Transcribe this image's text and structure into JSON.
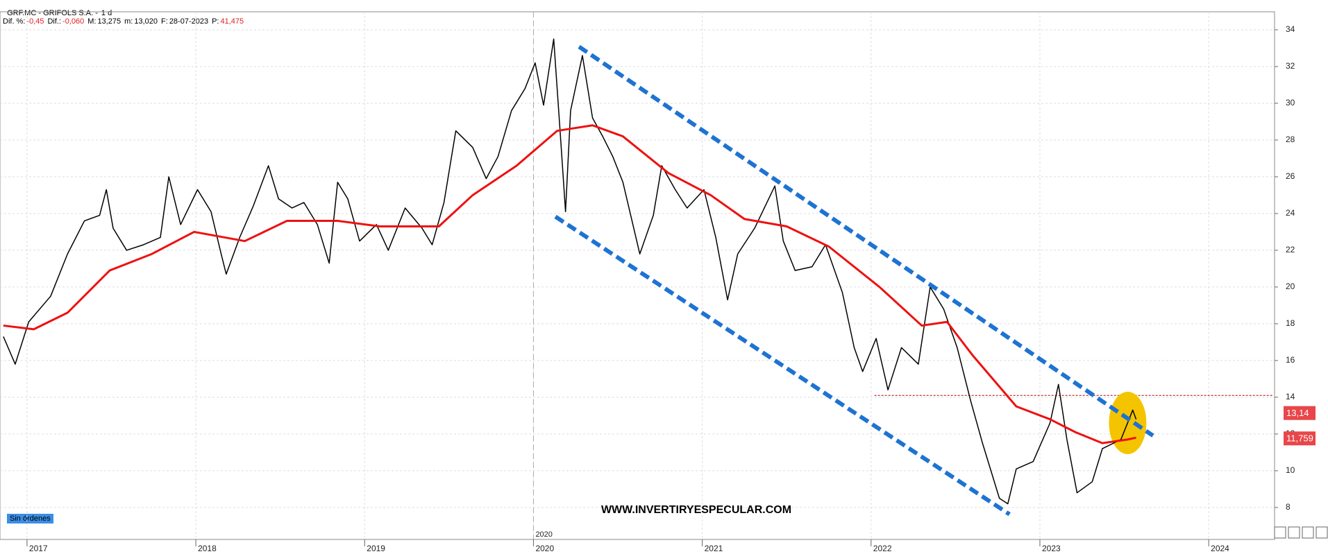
{
  "header": {
    "name": "GRF.MC - GRIFOLS S.A. -",
    "period": "1 d",
    "fields": [
      {
        "label": "Dif. %:",
        "value": "-0,45",
        "color": "#e02020"
      },
      {
        "label": "Dif.:",
        "value": "-0,060",
        "color": "#e02020"
      },
      {
        "label": "M:",
        "value": "13,275",
        "color": "#000000"
      },
      {
        "label": "m:",
        "value": "13,020",
        "color": "#000000"
      },
      {
        "label": "F:",
        "value": "28-07-2023",
        "color": "#000000"
      },
      {
        "label": "P:",
        "value": "41,475",
        "color": "#e02020"
      }
    ]
  },
  "badge": "Sin órdenes",
  "chart_data": {
    "type": "line",
    "watermark": "WWW.INVERTIRYESPECULAR.COM",
    "xlim": [
      2016.84,
      2024.39
    ],
    "xticks": [
      2017,
      2018,
      2019,
      2020,
      2021,
      2022,
      2023,
      2024
    ],
    "ylim": [
      6.26,
      34.98
    ],
    "yticks": [
      8,
      10,
      12,
      14,
      16,
      18,
      20,
      22,
      24,
      26,
      28,
      30,
      32,
      34
    ],
    "grid": true,
    "divider": {
      "value": 2020,
      "label": "2020"
    },
    "series": [
      {
        "color": "#000000",
        "x": [
          2016.86,
          2016.93,
          2017.01,
          2017.14,
          2017.24,
          2017.34,
          2017.43,
          2017.47,
          2017.51,
          2017.59,
          2017.69,
          2017.79,
          2017.84,
          2017.91,
          2018.01,
          2018.09,
          2018.15,
          2018.18,
          2018.26,
          2018.34,
          2018.43,
          2018.49,
          2018.57,
          2018.64,
          2018.72,
          2018.79,
          2018.84,
          2018.9,
          2018.97,
          2019.07,
          2019.14,
          2019.24,
          2019.34,
          2019.4,
          2019.47,
          2019.54,
          2019.64,
          2019.72,
          2019.79,
          2019.87,
          2019.95,
          2020.01,
          2020.06,
          2020.12,
          2020.16,
          2020.19,
          2020.22,
          2020.29,
          2020.35,
          2020.41,
          2020.47,
          2020.53,
          2020.63,
          2020.71,
          2020.76,
          2020.84,
          2020.91,
          2021.01,
          2021.08,
          2021.15,
          2021.21,
          2021.31,
          2021.43,
          2021.48,
          2021.55,
          2021.65,
          2021.73,
          2021.83,
          2021.9,
          2021.95,
          2022.03,
          2022.1,
          2022.18,
          2022.28,
          2022.35,
          2022.43,
          2022.51,
          2022.59,
          2022.66,
          2022.76,
          2022.81,
          2022.86,
          2022.96,
          2023.06,
          2023.11,
          2023.16,
          2023.22,
          2023.31,
          2023.37,
          2023.48,
          2023.55,
          2023.57
        ],
        "values": [
          17.3,
          15.8,
          18.1,
          19.5,
          21.8,
          23.6,
          23.9,
          25.3,
          23.2,
          22.0,
          22.3,
          22.7,
          26.0,
          23.4,
          25.3,
          24.1,
          21.8,
          20.7,
          22.7,
          24.4,
          26.6,
          24.8,
          24.3,
          24.6,
          23.4,
          21.3,
          25.7,
          24.8,
          22.5,
          23.4,
          22.0,
          24.3,
          23.2,
          22.3,
          24.6,
          28.5,
          27.6,
          25.9,
          27.1,
          29.6,
          30.8,
          32.2,
          29.9,
          33.5,
          28.2,
          24.1,
          29.6,
          32.6,
          29.2,
          28.2,
          27.1,
          25.7,
          21.8,
          23.9,
          26.6,
          25.3,
          24.3,
          25.3,
          22.7,
          19.3,
          21.8,
          23.2,
          25.5,
          22.5,
          20.9,
          21.1,
          22.3,
          19.7,
          16.7,
          15.4,
          17.2,
          14.4,
          16.7,
          15.8,
          20.0,
          18.8,
          16.7,
          13.8,
          11.5,
          8.5,
          8.2,
          10.1,
          10.5,
          12.6,
          14.7,
          11.7,
          8.8,
          9.4,
          11.2,
          11.7,
          13.3,
          12.8
        ]
      },
      {
        "color": "#ee1111",
        "x": [
          2016.86,
          2017.04,
          2017.24,
          2017.49,
          2017.74,
          2017.99,
          2018.29,
          2018.54,
          2018.84,
          2019.09,
          2019.44,
          2019.64,
          2019.9,
          2020.14,
          2020.35,
          2020.53,
          2020.8,
          2021.05,
          2021.25,
          2021.5,
          2021.75,
          2022.05,
          2022.3,
          2022.45,
          2022.6,
          2022.86,
          2023.06,
          2023.21,
          2023.37,
          2023.52,
          2023.57
        ],
        "values": [
          17.9,
          17.7,
          18.6,
          20.9,
          21.8,
          23.0,
          22.5,
          23.6,
          23.6,
          23.3,
          23.3,
          25.0,
          26.6,
          28.5,
          28.8,
          28.2,
          26.2,
          25.0,
          23.7,
          23.3,
          22.2,
          20.0,
          17.9,
          18.1,
          16.3,
          13.5,
          12.8,
          12.1,
          11.5,
          11.7,
          11.8
        ]
      }
    ],
    "trendlines": [
      {
        "color": "#1e73d2",
        "x": [
          2020.27,
          2023.67
        ],
        "y": [
          33.08,
          11.91
        ]
      },
      {
        "color": "#1e73d2",
        "x": [
          2020.13,
          2022.82
        ],
        "y": [
          23.83,
          7.63
        ]
      }
    ],
    "level": {
      "color": "#b00000",
      "y": 14.1,
      "x": [
        2022.02,
        2024.38
      ]
    },
    "highlight": {
      "color": "#f5c400",
      "x": 2023.52,
      "y": 12.6
    },
    "price_tags": [
      {
        "value": 13.14,
        "label": "13,14"
      },
      {
        "value": 11.759,
        "label": "11,759"
      }
    ],
    "tag_color": "#e8464a"
  }
}
